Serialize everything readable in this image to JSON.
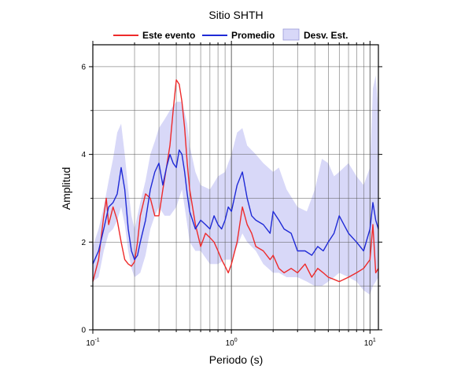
{
  "chart_data": {
    "type": "line",
    "title": "Sitio SHTH",
    "xlabel": "Periodo (s)",
    "ylabel": "Amplitud",
    "x_scale": "log",
    "xlim": [
      0.1,
      11.5
    ],
    "ylim": [
      0,
      6.5
    ],
    "x_ticks": [
      {
        "value": 0.1,
        "base": "10",
        "exp": "-1"
      },
      {
        "value": 1,
        "base": "10",
        "exp": "0"
      },
      {
        "value": 10,
        "base": "10",
        "exp": "1"
      }
    ],
    "y_ticks": [
      0,
      2,
      4,
      6
    ],
    "grid": true,
    "legend_position": "top",
    "legend": [
      {
        "label": "Este evento",
        "kind": "line",
        "color": "#ee2a2a"
      },
      {
        "label": "Promedio",
        "kind": "line",
        "color": "#1f2ad6"
      },
      {
        "label": "Desv. Est.",
        "kind": "band",
        "color": "#d8d8f8"
      }
    ],
    "series": [
      {
        "name": "Este evento",
        "color": "#ee2a2a",
        "x": [
          0.1,
          0.11,
          0.12,
          0.125,
          0.13,
          0.14,
          0.15,
          0.16,
          0.17,
          0.18,
          0.19,
          0.2,
          0.21,
          0.22,
          0.24,
          0.26,
          0.28,
          0.3,
          0.32,
          0.34,
          0.36,
          0.38,
          0.4,
          0.42,
          0.44,
          0.46,
          0.48,
          0.5,
          0.55,
          0.6,
          0.65,
          0.7,
          0.75,
          0.8,
          0.85,
          0.9,
          0.95,
          1.0,
          1.1,
          1.2,
          1.3,
          1.4,
          1.5,
          1.7,
          1.9,
          2.0,
          2.2,
          2.4,
          2.7,
          3.0,
          3.4,
          3.8,
          4.2,
          4.6,
          5.0,
          5.5,
          6.0,
          7.0,
          8.0,
          9.0,
          10.0,
          10.5,
          11.0,
          11.5
        ],
        "y": [
          1.1,
          1.6,
          2.6,
          3.0,
          2.4,
          2.8,
          2.5,
          2.0,
          1.6,
          1.5,
          1.45,
          1.55,
          2.0,
          2.6,
          3.1,
          3.0,
          2.6,
          2.6,
          3.2,
          3.7,
          4.2,
          5.0,
          5.7,
          5.6,
          5.2,
          4.6,
          3.8,
          3.2,
          2.4,
          1.9,
          2.2,
          2.1,
          2.0,
          1.8,
          1.6,
          1.45,
          1.3,
          1.5,
          2.0,
          2.8,
          2.4,
          2.2,
          1.9,
          1.8,
          1.6,
          1.7,
          1.4,
          1.3,
          1.4,
          1.3,
          1.5,
          1.2,
          1.4,
          1.3,
          1.2,
          1.15,
          1.1,
          1.2,
          1.3,
          1.4,
          1.6,
          2.4,
          1.3,
          1.4
        ]
      },
      {
        "name": "Promedio",
        "color": "#1f2ad6",
        "x": [
          0.1,
          0.11,
          0.12,
          0.13,
          0.14,
          0.15,
          0.16,
          0.17,
          0.18,
          0.19,
          0.2,
          0.21,
          0.22,
          0.24,
          0.26,
          0.28,
          0.3,
          0.32,
          0.34,
          0.36,
          0.38,
          0.4,
          0.42,
          0.44,
          0.46,
          0.48,
          0.5,
          0.55,
          0.6,
          0.65,
          0.7,
          0.75,
          0.8,
          0.85,
          0.9,
          0.95,
          1.0,
          1.1,
          1.2,
          1.3,
          1.4,
          1.5,
          1.7,
          1.9,
          2.0,
          2.2,
          2.4,
          2.7,
          3.0,
          3.4,
          3.8,
          4.2,
          4.6,
          5.0,
          5.5,
          6.0,
          7.0,
          8.0,
          9.0,
          10.0,
          10.5,
          11.0,
          11.5
        ],
        "y": [
          1.5,
          1.8,
          2.3,
          2.8,
          2.9,
          3.1,
          3.7,
          3.2,
          2.3,
          1.8,
          1.6,
          1.7,
          2.0,
          2.5,
          3.2,
          3.6,
          3.8,
          3.3,
          3.7,
          4.0,
          3.8,
          3.7,
          4.1,
          4.0,
          3.6,
          3.1,
          2.7,
          2.3,
          2.5,
          2.4,
          2.3,
          2.6,
          2.4,
          2.3,
          2.5,
          2.8,
          2.7,
          3.3,
          3.6,
          3.0,
          2.6,
          2.5,
          2.4,
          2.2,
          2.7,
          2.5,
          2.3,
          2.2,
          1.8,
          1.8,
          1.7,
          1.9,
          1.8,
          2.0,
          2.2,
          2.6,
          2.2,
          2.0,
          1.8,
          2.3,
          2.9,
          2.5,
          2.3
        ]
      }
    ],
    "band": {
      "name": "Desv. Est.",
      "color": "#d8d8f8",
      "x": [
        0.1,
        0.11,
        0.12,
        0.13,
        0.14,
        0.15,
        0.16,
        0.17,
        0.18,
        0.19,
        0.2,
        0.22,
        0.24,
        0.26,
        0.28,
        0.3,
        0.33,
        0.36,
        0.4,
        0.44,
        0.48,
        0.5,
        0.55,
        0.6,
        0.7,
        0.8,
        0.9,
        1.0,
        1.1,
        1.2,
        1.3,
        1.5,
        1.7,
        2.0,
        2.2,
        2.5,
        3.0,
        3.5,
        4.0,
        4.5,
        5.0,
        5.5,
        6.0,
        7.0,
        8.0,
        9.0,
        10.0,
        10.5,
        11.0,
        11.5
      ],
      "upper": [
        1.9,
        2.3,
        2.8,
        3.4,
        3.9,
        4.5,
        4.7,
        4.0,
        3.2,
        2.6,
        2.3,
        2.9,
        3.4,
        4.0,
        4.3,
        4.6,
        4.8,
        5.0,
        5.2,
        5.2,
        4.7,
        4.2,
        3.6,
        3.3,
        3.2,
        3.5,
        3.6,
        4.0,
        4.5,
        4.6,
        4.2,
        4.0,
        3.8,
        3.6,
        3.7,
        3.2,
        2.8,
        2.7,
        3.2,
        3.9,
        3.8,
        3.5,
        3.6,
        3.8,
        3.5,
        3.3,
        3.7,
        5.5,
        5.8,
        5.0
      ],
      "lower": [
        1.1,
        1.2,
        1.8,
        2.2,
        2.3,
        2.5,
        2.8,
        2.4,
        1.8,
        1.4,
        1.2,
        1.3,
        1.7,
        2.3,
        2.6,
        2.8,
        2.6,
        2.6,
        2.8,
        3.2,
        2.4,
        2.0,
        1.8,
        1.8,
        1.5,
        1.5,
        1.6,
        1.6,
        1.9,
        2.2,
        2.0,
        1.8,
        1.5,
        1.3,
        1.3,
        1.2,
        1.2,
        1.1,
        1.0,
        1.0,
        1.1,
        1.2,
        1.3,
        1.2,
        1.1,
        0.9,
        0.8,
        1.0,
        1.1,
        1.2
      ]
    }
  }
}
